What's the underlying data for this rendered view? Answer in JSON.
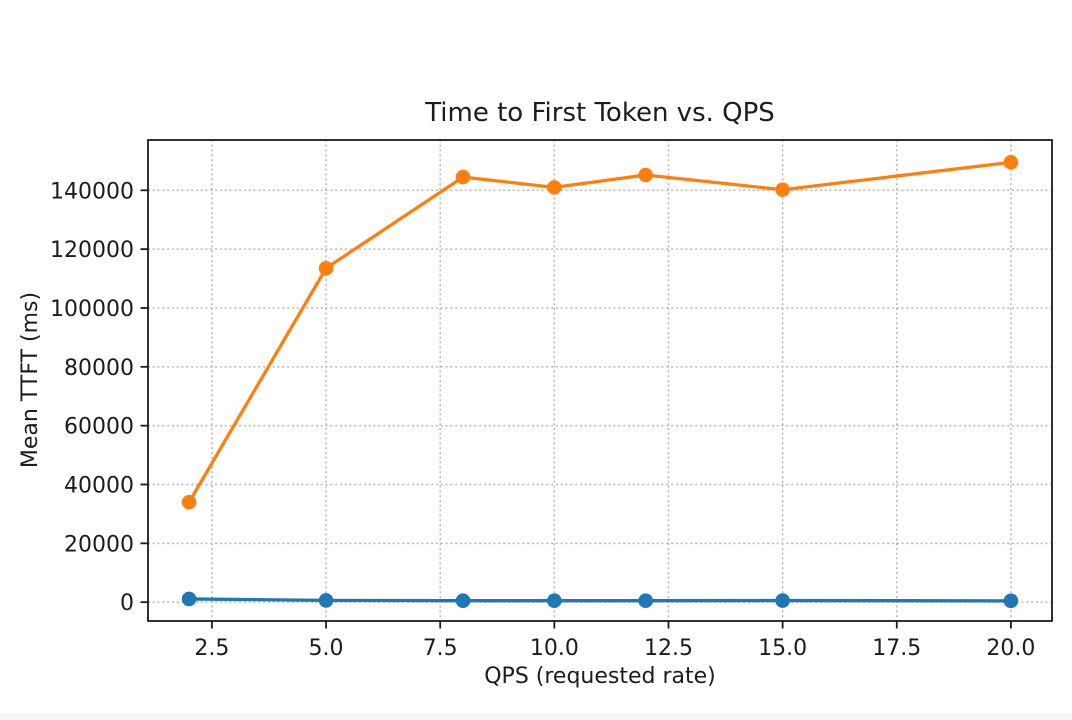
{
  "page": {
    "background": "#ffffff",
    "bottom_strip_color": "#f5f5f6"
  },
  "chart_data": {
    "type": "line",
    "title": "Time to First Token vs. QPS",
    "xlabel": "QPS (requested rate)",
    "ylabel": "Mean TTFT (ms)",
    "x": [
      2,
      5,
      8,
      10,
      12,
      15,
      20
    ],
    "series": [
      {
        "name": "blue-series",
        "color": "#1f77b4",
        "values": [
          1100,
          600,
          500,
          500,
          500,
          550,
          450
        ]
      },
      {
        "name": "orange-series",
        "color": "#ff7f0e",
        "values": [
          34000,
          113500,
          144500,
          141000,
          145200,
          140200,
          149500
        ]
      }
    ],
    "xticks": [
      2.5,
      5.0,
      7.5,
      10.0,
      12.5,
      15.0,
      17.5,
      20.0
    ],
    "xtick_labels": [
      "2.5",
      "5.0",
      "7.5",
      "10.0",
      "12.5",
      "15.0",
      "17.5",
      "20.0"
    ],
    "yticks": [
      0,
      20000,
      40000,
      60000,
      80000,
      100000,
      120000,
      140000
    ],
    "ytick_labels": [
      "0",
      "20000",
      "40000",
      "60000",
      "80000",
      "100000",
      "120000",
      "140000"
    ],
    "xlim": [
      1.1,
      20.9
    ],
    "ylim": [
      -6400,
      157100
    ],
    "grid": "dotted",
    "legend_position": "none",
    "marker": "circle"
  },
  "style": {
    "grid_color": "#b0b0b0",
    "spine_color": "#1c1c1c",
    "tick_color": "#1c1c1c",
    "text_color": "#1c1c1c"
  }
}
